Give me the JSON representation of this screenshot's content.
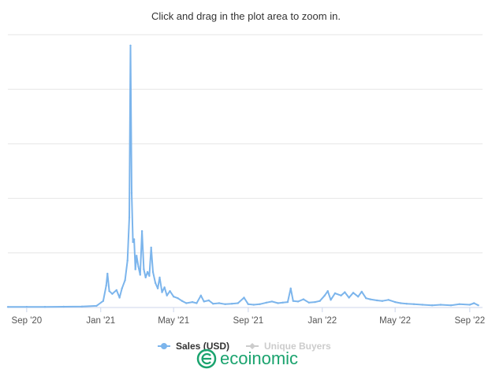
{
  "chart_data": {
    "type": "line",
    "subtitle": "Click and drag in the plot area to zoom in.",
    "x_tick_labels": [
      "Sep '20",
      "Jan '21",
      "May '21",
      "Sep '21",
      "Jan '22",
      "May '22",
      "Sep '22"
    ],
    "y_tick_labels": [],
    "grid": true,
    "legend_position": "bottom",
    "series": [
      {
        "name": "Sales (USD)",
        "color": "#7cb5ec",
        "visible": true,
        "points": [
          {
            "x": "2020-08-01",
            "y": 1.0
          },
          {
            "x": "2020-09-01",
            "y": 1.1
          },
          {
            "x": "2020-10-01",
            "y": 1.2
          },
          {
            "x": "2020-11-01",
            "y": 1.4
          },
          {
            "x": "2020-12-01",
            "y": 1.7
          },
          {
            "x": "2020-12-25",
            "y": 3.0
          },
          {
            "x": "2021-01-05",
            "y": 12
          },
          {
            "x": "2021-01-10",
            "y": 40
          },
          {
            "x": "2021-01-12",
            "y": 62
          },
          {
            "x": "2021-01-15",
            "y": 30
          },
          {
            "x": "2021-01-20",
            "y": 25
          },
          {
            "x": "2021-01-27",
            "y": 32
          },
          {
            "x": "2021-02-01",
            "y": 18
          },
          {
            "x": "2021-02-05",
            "y": 35
          },
          {
            "x": "2021-02-10",
            "y": 50
          },
          {
            "x": "2021-02-14",
            "y": 86
          },
          {
            "x": "2021-02-17",
            "y": 165
          },
          {
            "x": "2021-02-19",
            "y": 480
          },
          {
            "x": "2021-02-21",
            "y": 210
          },
          {
            "x": "2021-02-23",
            "y": 120
          },
          {
            "x": "2021-02-25",
            "y": 125
          },
          {
            "x": "2021-02-27",
            "y": 70
          },
          {
            "x": "2021-03-01",
            "y": 95
          },
          {
            "x": "2021-03-04",
            "y": 75
          },
          {
            "x": "2021-03-07",
            "y": 60
          },
          {
            "x": "2021-03-10",
            "y": 140
          },
          {
            "x": "2021-03-13",
            "y": 70
          },
          {
            "x": "2021-03-16",
            "y": 55
          },
          {
            "x": "2021-03-19",
            "y": 65
          },
          {
            "x": "2021-03-22",
            "y": 58
          },
          {
            "x": "2021-03-25",
            "y": 110
          },
          {
            "x": "2021-03-28",
            "y": 65
          },
          {
            "x": "2021-04-01",
            "y": 45
          },
          {
            "x": "2021-04-05",
            "y": 35
          },
          {
            "x": "2021-04-08",
            "y": 55
          },
          {
            "x": "2021-04-12",
            "y": 28
          },
          {
            "x": "2021-04-16",
            "y": 37
          },
          {
            "x": "2021-04-20",
            "y": 22
          },
          {
            "x": "2021-04-25",
            "y": 30
          },
          {
            "x": "2021-05-01",
            "y": 20
          },
          {
            "x": "2021-05-08",
            "y": 17
          },
          {
            "x": "2021-05-15",
            "y": 12
          },
          {
            "x": "2021-05-22",
            "y": 8
          },
          {
            "x": "2021-06-01",
            "y": 10
          },
          {
            "x": "2021-06-08",
            "y": 8
          },
          {
            "x": "2021-06-15",
            "y": 22
          },
          {
            "x": "2021-06-20",
            "y": 11
          },
          {
            "x": "2021-06-28",
            "y": 13
          },
          {
            "x": "2021-07-05",
            "y": 7
          },
          {
            "x": "2021-07-15",
            "y": 8
          },
          {
            "x": "2021-07-25",
            "y": 6
          },
          {
            "x": "2021-08-05",
            "y": 7
          },
          {
            "x": "2021-08-15",
            "y": 8
          },
          {
            "x": "2021-08-25",
            "y": 18
          },
          {
            "x": "2021-09-01",
            "y": 6
          },
          {
            "x": "2021-09-10",
            "y": 5
          },
          {
            "x": "2021-09-20",
            "y": 6
          },
          {
            "x": "2021-10-01",
            "y": 9
          },
          {
            "x": "2021-10-10",
            "y": 11
          },
          {
            "x": "2021-10-20",
            "y": 8
          },
          {
            "x": "2021-10-28",
            "y": 9
          },
          {
            "x": "2021-11-05",
            "y": 10
          },
          {
            "x": "2021-11-10",
            "y": 35
          },
          {
            "x": "2021-11-14",
            "y": 12
          },
          {
            "x": "2021-11-22",
            "y": 11
          },
          {
            "x": "2021-12-01",
            "y": 15
          },
          {
            "x": "2021-12-10",
            "y": 9
          },
          {
            "x": "2021-12-20",
            "y": 10
          },
          {
            "x": "2021-12-28",
            "y": 12
          },
          {
            "x": "2022-01-05",
            "y": 22
          },
          {
            "x": "2022-01-10",
            "y": 30
          },
          {
            "x": "2022-01-15",
            "y": 14
          },
          {
            "x": "2022-01-22",
            "y": 26
          },
          {
            "x": "2022-02-01",
            "y": 22
          },
          {
            "x": "2022-02-07",
            "y": 28
          },
          {
            "x": "2022-02-14",
            "y": 18
          },
          {
            "x": "2022-02-21",
            "y": 27
          },
          {
            "x": "2022-03-01",
            "y": 20
          },
          {
            "x": "2022-03-07",
            "y": 29
          },
          {
            "x": "2022-03-14",
            "y": 17
          },
          {
            "x": "2022-03-21",
            "y": 15
          },
          {
            "x": "2022-04-01",
            "y": 13
          },
          {
            "x": "2022-04-10",
            "y": 12
          },
          {
            "x": "2022-04-20",
            "y": 14
          },
          {
            "x": "2022-05-01",
            "y": 10
          },
          {
            "x": "2022-05-10",
            "y": 8
          },
          {
            "x": "2022-05-20",
            "y": 7
          },
          {
            "x": "2022-06-01",
            "y": 6
          },
          {
            "x": "2022-06-15",
            "y": 5
          },
          {
            "x": "2022-07-01",
            "y": 4
          },
          {
            "x": "2022-07-15",
            "y": 5
          },
          {
            "x": "2022-08-01",
            "y": 4
          },
          {
            "x": "2022-08-15",
            "y": 6
          },
          {
            "x": "2022-09-01",
            "y": 5
          },
          {
            "x": "2022-09-08",
            "y": 8
          },
          {
            "x": "2022-09-15",
            "y": 4
          }
        ]
      },
      {
        "name": "Unique Buyers",
        "color": "#cccccc",
        "visible": false,
        "points": []
      }
    ]
  },
  "watermark": {
    "logo_text": "ecoinomic"
  }
}
